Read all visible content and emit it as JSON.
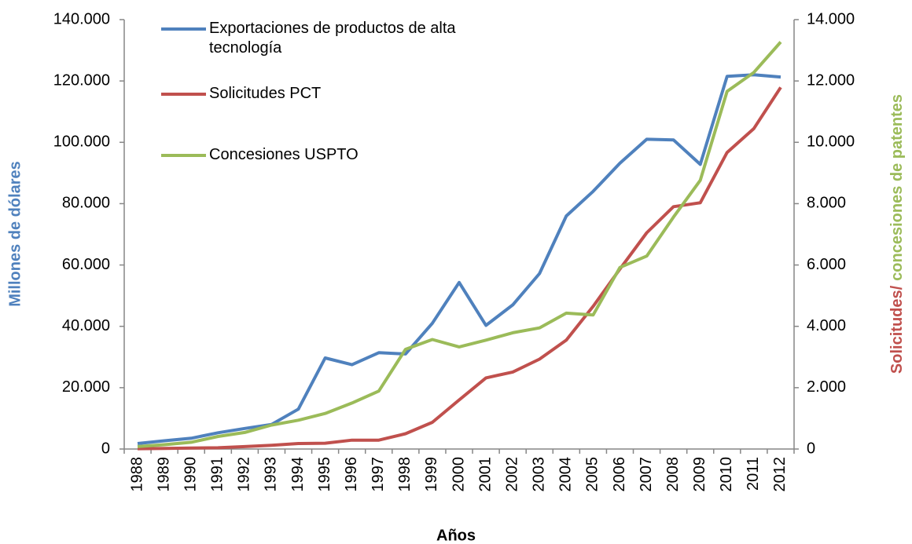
{
  "chart_data": {
    "type": "line",
    "x_label": "Años",
    "y_label": "Millones de dólares",
    "y_label_color": "#4f81bd",
    "y2_label": [
      {
        "text": "Solicitudes/",
        "color": "#c0504d"
      },
      {
        "text": "concesiones de patentes",
        "color": "#9bbb59"
      }
    ],
    "categories": [
      "1988",
      "1989",
      "1990",
      "1991",
      "1992",
      "1993",
      "1994",
      "1995",
      "1996",
      "1997",
      "1998",
      "1999",
      "2000",
      "2001",
      "2002",
      "2003",
      "2004",
      "2005",
      "2006",
      "2007",
      "2008",
      "2009",
      "2010",
      "2011",
      "2012"
    ],
    "series": [
      {
        "name": "Exportaciones de productos de alta tecnología",
        "color": "#4f81bd",
        "values": [
          1800,
          2700,
          3500,
          5300,
          6700,
          8000,
          13000,
          29700,
          27500,
          31400,
          31000,
          41000,
          54300,
          40300,
          47000,
          57200,
          76000,
          84000,
          93200,
          101000,
          100800,
          92800,
          121500,
          122000,
          121300
        ]
      },
      {
        "name": "Solicitudes PCT",
        "color": "#c0504d",
        "axis": "y2",
        "values": [
          10,
          20,
          30,
          40,
          80,
          120,
          180,
          190,
          290,
          290,
          500,
          870,
          1600,
          2320,
          2510,
          2930,
          3550,
          4650,
          5870,
          7050,
          7900,
          8030,
          9670,
          10450,
          11790
        ]
      },
      {
        "name": "Concesiones USPTO",
        "color": "#9bbb59",
        "axis": "y2",
        "values": [
          80,
          140,
          220,
          410,
          540,
          780,
          940,
          1160,
          1500,
          1890,
          3250,
          3570,
          3330,
          3550,
          3790,
          3950,
          4430,
          4370,
          5920,
          6290,
          7560,
          8760,
          11660,
          12280,
          13270
        ]
      }
    ],
    "ylim": [
      0,
      140000
    ],
    "yticks": [
      0,
      {
        "value": 20000,
        "label": "20.000"
      },
      {
        "value": 40000,
        "label": "40.000"
      },
      {
        "value": 60000,
        "label": "60.000"
      },
      {
        "value": 80000,
        "label": "80.000"
      },
      {
        "value": 100000,
        "label": "100.000"
      },
      {
        "value": 120000,
        "label": "120.000"
      },
      {
        "value": 140000,
        "label": "140.000"
      }
    ],
    "y2lim": [
      0,
      14000
    ],
    "y2ticks": [
      0,
      {
        "value": 2000,
        "label": "2.000"
      },
      {
        "value": 4000,
        "label": "4.000"
      },
      {
        "value": 6000,
        "label": "6.000"
      },
      {
        "value": 8000,
        "label": "8.000"
      },
      {
        "value": 10000,
        "label": "10.000"
      },
      {
        "value": 12000,
        "label": "12.000"
      },
      {
        "value": 14000,
        "label": "14.000"
      }
    ],
    "grid": false,
    "legend": "top-left"
  }
}
